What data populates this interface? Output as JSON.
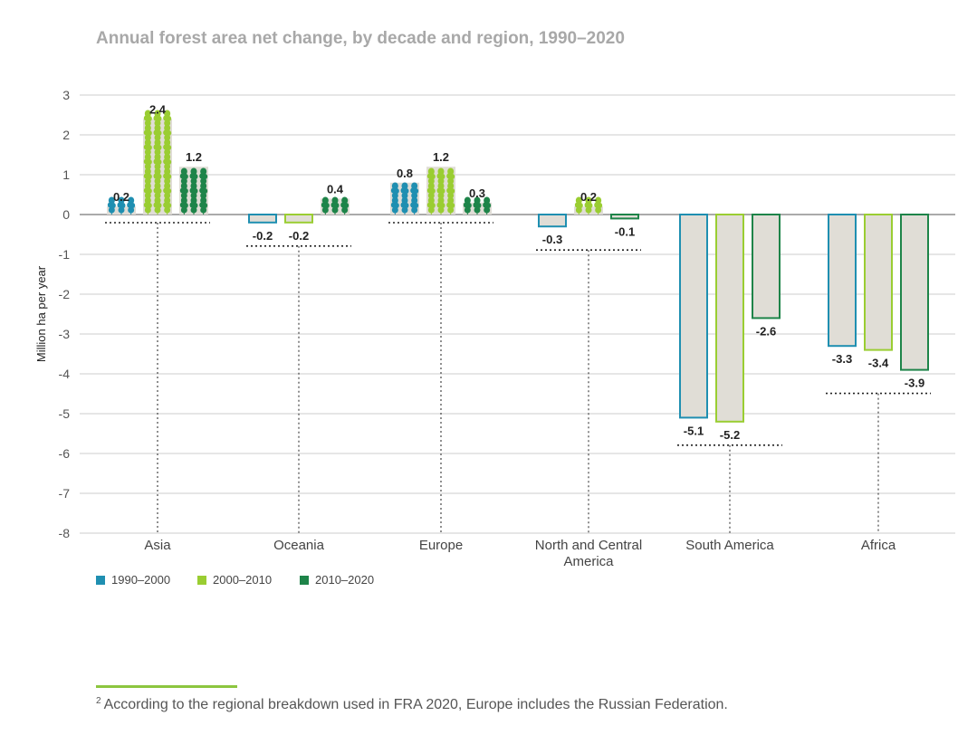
{
  "colors": {
    "s1": "#1f8fb1",
    "s2": "#9acd32",
    "s3": "#1e8449",
    "barFill": "#e0ddd6",
    "grid": "#cccccc",
    "axisText": "#555555"
  },
  "icons": {
    "s1": "tree-icon",
    "s2": "tree-icon",
    "s3": "tree-icon"
  },
  "chart_data": {
    "type": "bar",
    "title": "Annual forest area net change, by decade and region, 1990–2020",
    "ylabel": "Million ha per year",
    "xlabel": "",
    "ylim": [
      -8,
      3
    ],
    "yticks": [
      "3",
      "2",
      "1",
      "0",
      "-1",
      "-2",
      "-3",
      "-4",
      "-5",
      "-6",
      "-7",
      "-8"
    ],
    "grid": true,
    "legend_position": "bottom-left",
    "categories": [
      [
        "Asia"
      ],
      [
        "Oceania"
      ],
      [
        "Europe"
      ],
      [
        "North and Central",
        "America"
      ],
      [
        "South America"
      ],
      [
        "Africa"
      ]
    ],
    "series": [
      {
        "name": "1990–2000",
        "values": [
          0.2,
          -0.2,
          0.8,
          -0.3,
          -5.1,
          -3.3
        ]
      },
      {
        "name": "2000–2010",
        "values": [
          2.4,
          -0.2,
          1.2,
          0.2,
          -5.2,
          -3.4
        ]
      },
      {
        "name": "2010–2020",
        "values": [
          1.2,
          0.4,
          0.3,
          -0.1,
          -2.6,
          -3.9
        ]
      }
    ],
    "value_labels": [
      [
        "0.2",
        "-0.2",
        "0.8",
        "-0.3",
        "-5.1",
        "-3.3"
      ],
      [
        "2.4",
        "-0.2",
        "1.2",
        "0.2",
        "-5.2",
        "-3.4"
      ],
      [
        "1.2",
        "0.4",
        "0.3",
        "-0.1",
        "-2.6",
        "-3.9"
      ]
    ]
  },
  "footnote": {
    "marker": "2",
    "text": "According to the regional breakdown used in FRA 2020, Europe includes the Russian Federation."
  }
}
